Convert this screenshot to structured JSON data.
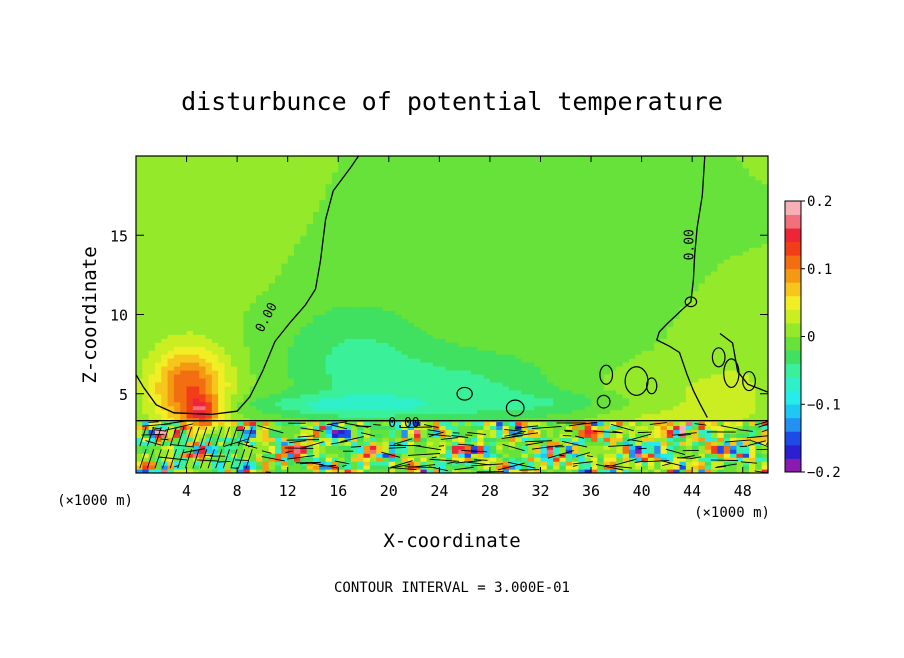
{
  "chart_data": {
    "type": "heatmap",
    "title": "disturbunce of potential temperature",
    "xlabel": "X-coordinate",
    "ylabel": "Z-coordinate",
    "x_unit_label": "(×1000 m)",
    "x_unit_label_right": "(×1000 m)",
    "xlim": [
      0,
      50
    ],
    "ylim": [
      0,
      20
    ],
    "xticks": [
      4,
      8,
      12,
      16,
      20,
      24,
      28,
      32,
      36,
      40,
      44,
      48
    ],
    "yticks": [
      5,
      10,
      15
    ],
    "contour_interval_text": "CONTOUR INTERVAL = 3.000E-01",
    "contour_labels": [
      {
        "text": "0.00",
        "x": 10.6,
        "y": 9.7,
        "angle": -62
      },
      {
        "text": "0.00",
        "x": 44.1,
        "y": 14.4,
        "angle": -90
      },
      {
        "text": "0.00",
        "x": 21.2,
        "y": 2.9,
        "angle": 0
      }
    ],
    "colorbar": {
      "min": -0.2,
      "max": 0.2,
      "tick_labels": [
        "0.2",
        "0.1",
        "0",
        "−0.1",
        "−0.2"
      ],
      "tick_values": [
        0.2,
        0.1,
        0,
        -0.1,
        -0.2
      ],
      "colors": [
        "#8a1ab0",
        "#2a1fd2",
        "#1e4ae8",
        "#2390f2",
        "#1ec8f2",
        "#26ecec",
        "#2ff0c8",
        "#3af098",
        "#40e060",
        "#66e23a",
        "#94ea2a",
        "#cbee22",
        "#f2ee26",
        "#f6c61c",
        "#f49a12",
        "#f26e10",
        "#f23e18",
        "#ee2438",
        "#f2707c",
        "#f6b0b6"
      ]
    },
    "field": {
      "background_value": 0.0,
      "anomalies": [
        {
          "x": 4.2,
          "y": 5.4,
          "sx": 3.0,
          "sy": 2.6,
          "amp": 0.12
        },
        {
          "x": 5.2,
          "y": 3.9,
          "sx": 1.3,
          "sy": 0.9,
          "amp": 0.09
        },
        {
          "x": 17.5,
          "y": 7.0,
          "sx": 6.0,
          "sy": 4.0,
          "amp": -0.045
        },
        {
          "x": 27.0,
          "y": 5.5,
          "sx": 7.0,
          "sy": 2.5,
          "amp": -0.04
        },
        {
          "x": 16.0,
          "y": 4.3,
          "sx": 8.0,
          "sy": 0.7,
          "amp": -0.045
        },
        {
          "x": 35.0,
          "y": 4.4,
          "sx": 8.0,
          "sy": 0.8,
          "amp": -0.03
        },
        {
          "x": 41.0,
          "y": 4.0,
          "sx": 6.0,
          "sy": 1.8,
          "amp": 0.03
        },
        {
          "x": 47.0,
          "y": 5.0,
          "sx": 3.0,
          "sy": 2.0,
          "amp": 0.03
        },
        {
          "x": 8.0,
          "y": 15.0,
          "sx": 3.0,
          "sy": 4.0,
          "amp": 0.01
        }
      ],
      "surface_layer_top": 3.2,
      "noise_amplitude": 0.2
    }
  }
}
